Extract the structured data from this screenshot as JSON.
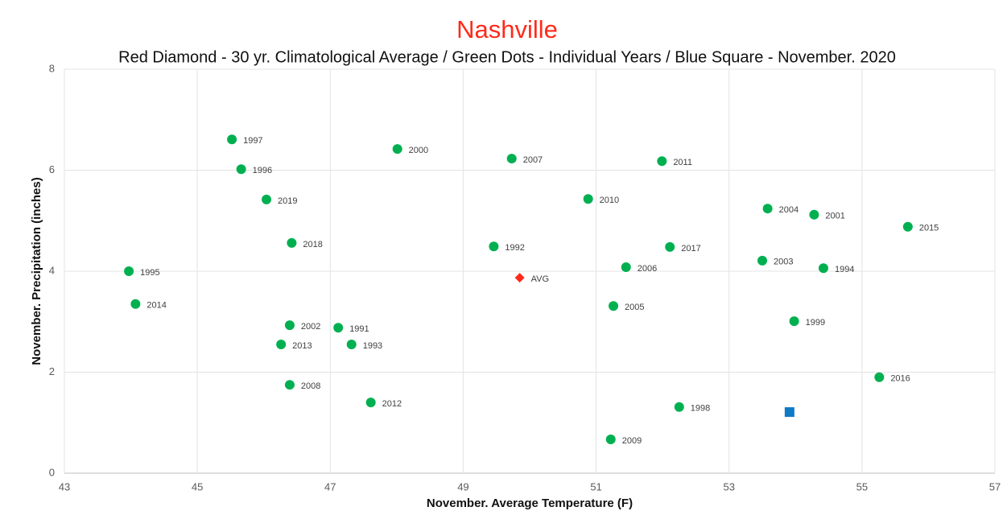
{
  "chart_data": {
    "type": "scatter",
    "title": "Nashville",
    "subtitle": "Red Diamond - 30 yr. Climatological Average / Green Dots - Individual Years / Blue Square - November. 2020",
    "x_label": "November. Average Temperature (F)",
    "y_label": "November. Precipitation (inches)",
    "xlim": [
      43,
      57
    ],
    "xticks": [
      43,
      45,
      47,
      49,
      51,
      53,
      55,
      57
    ],
    "ylim": [
      0,
      8
    ],
    "yticks": [
      0,
      2,
      4,
      6,
      8
    ],
    "grid": true,
    "series": [
      {
        "color": "#00b050",
        "marker": "circle",
        "labels": [
          "1997",
          "1996",
          "2019",
          "2018",
          "1995",
          "2014",
          "2002",
          "2013",
          "2008",
          "1991",
          "1993",
          "2012",
          "2000",
          "1992",
          "2007",
          "2010",
          "2006",
          "2005",
          "2009",
          "2011",
          "2017",
          "1998",
          "2003",
          "2004",
          "1999",
          "2001",
          "1994",
          "2016",
          "2015"
        ],
        "x": [
          45.52,
          45.66,
          46.04,
          46.42,
          43.97,
          44.07,
          46.39,
          46.26,
          46.39,
          47.12,
          47.32,
          47.61,
          48.01,
          49.46,
          49.73,
          50.88,
          51.45,
          51.26,
          51.22,
          51.99,
          52.11,
          52.25,
          53.5,
          53.58,
          53.98,
          54.28,
          54.42,
          55.26,
          55.69
        ],
        "values": [
          6.61,
          6.02,
          5.42,
          4.56,
          4.0,
          3.35,
          2.93,
          2.55,
          1.75,
          2.88,
          2.55,
          1.4,
          6.42,
          4.49,
          6.23,
          5.43,
          4.08,
          3.31,
          0.67,
          6.18,
          4.48,
          1.31,
          4.21,
          5.24,
          3.01,
          5.12,
          4.06,
          1.9,
          4.88
        ]
      },
      {
        "color": "#ff2a1a",
        "marker": "diamond",
        "labels": [
          "AVG"
        ],
        "x": [
          49.85
        ],
        "values": [
          3.87
        ]
      },
      {
        "color": "#0f7ac6",
        "marker": "square",
        "x": [
          53.91
        ],
        "values": [
          1.21
        ]
      }
    ]
  }
}
